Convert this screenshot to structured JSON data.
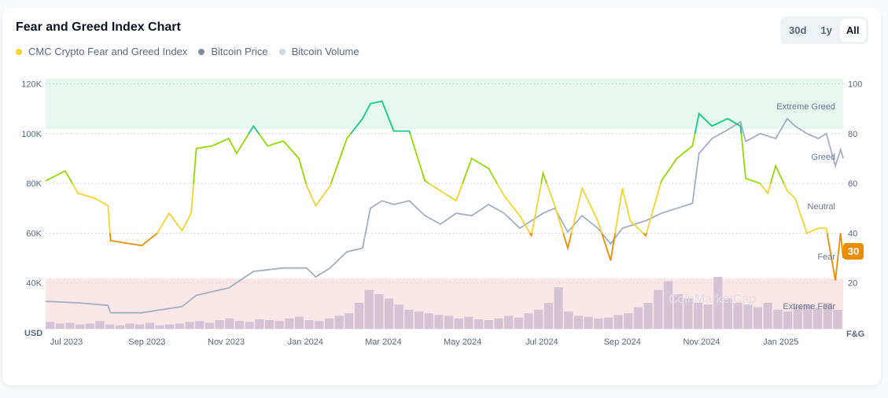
{
  "title": "Fear and Greed Index Chart",
  "legend": [
    {
      "label": "CMC Crypto Fear and Greed Index",
      "color": "#f3d42f"
    },
    {
      "label": "Bitcoin Price",
      "color": "#858ca2"
    },
    {
      "label": "Bitcoin Volume",
      "color": "#cfd6e4"
    }
  ],
  "range_buttons": [
    {
      "label": "30d",
      "active": false
    },
    {
      "label": "1y",
      "active": false
    },
    {
      "label": "All",
      "active": true
    }
  ],
  "current_value": "30",
  "watermark": "CoinMarketCap",
  "chart_data": {
    "type": "line",
    "left_axis": {
      "unit_label": "USD",
      "ticks": [
        "40K",
        "60K",
        "80K",
        "100K",
        "120K"
      ],
      "range": [
        20000,
        120000
      ]
    },
    "right_axis": {
      "unit_label": "F&G",
      "ticks": [
        "20",
        "40",
        "60",
        "80",
        "100"
      ],
      "range": [
        0,
        100
      ]
    },
    "x_ticks": [
      "Jul 2023",
      "Sep 2023",
      "Nov 2023",
      "Jan 2024",
      "Mar 2024",
      "May 2024",
      "Jul 2024",
      "Sep 2024",
      "Nov 2024",
      "Jan 2025"
    ],
    "zones": [
      {
        "label": "Extreme Greed",
        "from": 80,
        "to": 100,
        "color": "#e6f7f0"
      },
      {
        "label": "Greed",
        "from": 60,
        "to": 80
      },
      {
        "label": "Neutral",
        "from": 40,
        "to": 60
      },
      {
        "label": "Fear",
        "from": 20,
        "to": 40
      },
      {
        "label": "Extreme Fear",
        "from": 0,
        "to": 20,
        "color": "#fbe7e8"
      }
    ],
    "grid": true,
    "series": [
      {
        "name": "CMC Crypto Fear and Greed Index",
        "axis": "right",
        "points": [
          [
            "2023-06-15",
            61
          ],
          [
            "2023-06-30",
            65
          ],
          [
            "2023-07-10",
            56
          ],
          [
            "2023-07-23",
            54
          ],
          [
            "2023-08-02",
            51
          ],
          [
            "2023-08-04",
            37
          ],
          [
            "2023-08-16",
            36
          ],
          [
            "2023-08-28",
            35
          ],
          [
            "2023-09-09",
            40
          ],
          [
            "2023-09-18",
            48
          ],
          [
            "2023-09-28",
            41
          ],
          [
            "2023-10-05",
            48
          ],
          [
            "2023-10-09",
            74
          ],
          [
            "2023-10-21",
            75
          ],
          [
            "2023-11-03",
            78
          ],
          [
            "2023-11-09",
            72
          ],
          [
            "2023-11-22",
            83
          ],
          [
            "2023-12-03",
            75
          ],
          [
            "2023-12-15",
            77
          ],
          [
            "2023-12-27",
            70
          ],
          [
            "2024-01-02",
            59
          ],
          [
            "2024-01-09",
            51
          ],
          [
            "2024-01-20",
            59
          ],
          [
            "2024-02-02",
            78
          ],
          [
            "2024-02-14",
            86
          ],
          [
            "2024-02-20",
            92
          ],
          [
            "2024-02-29",
            93
          ],
          [
            "2024-03-09",
            81
          ],
          [
            "2024-03-21",
            81
          ],
          [
            "2024-04-02",
            61
          ],
          [
            "2024-04-14",
            57
          ],
          [
            "2024-04-26",
            53
          ],
          [
            "2024-05-08",
            70
          ],
          [
            "2024-05-21",
            66
          ],
          [
            "2024-06-02",
            55
          ],
          [
            "2024-06-14",
            47
          ],
          [
            "2024-06-23",
            39
          ],
          [
            "2024-07-02",
            64
          ],
          [
            "2024-07-11",
            51
          ],
          [
            "2024-07-21",
            34
          ],
          [
            "2024-08-01",
            58
          ],
          [
            "2024-08-13",
            45
          ],
          [
            "2024-08-23",
            29
          ],
          [
            "2024-09-01",
            58
          ],
          [
            "2024-09-07",
            45
          ],
          [
            "2024-09-19",
            39
          ],
          [
            "2024-10-01",
            61
          ],
          [
            "2024-10-13",
            70
          ],
          [
            "2024-10-25",
            75
          ],
          [
            "2024-10-30",
            88
          ],
          [
            "2024-11-09",
            83
          ],
          [
            "2024-11-21",
            86
          ],
          [
            "2024-12-01",
            83
          ],
          [
            "2024-12-05",
            62
          ],
          [
            "2024-12-16",
            60
          ],
          [
            "2024-12-22",
            56
          ],
          [
            "2024-12-28",
            67
          ],
          [
            "2025-01-06",
            57
          ],
          [
            "2025-01-12",
            54
          ],
          [
            "2025-01-21",
            40
          ],
          [
            "2025-01-30",
            42
          ],
          [
            "2025-02-05",
            42
          ],
          [
            "2025-02-12",
            21
          ],
          [
            "2025-02-16",
            40
          ],
          [
            "2025-02-18",
            30
          ]
        ]
      },
      {
        "name": "Bitcoin Price",
        "axis": "left",
        "points": [
          [
            "2023-06-15",
            32600
          ],
          [
            "2023-07-10",
            32000
          ],
          [
            "2023-08-02",
            31000
          ],
          [
            "2023-08-04",
            28000
          ],
          [
            "2023-08-28",
            28000
          ],
          [
            "2023-09-09",
            29000
          ],
          [
            "2023-09-28",
            30500
          ],
          [
            "2023-10-09",
            35000
          ],
          [
            "2023-11-03",
            38000
          ],
          [
            "2023-11-22",
            44600
          ],
          [
            "2023-12-15",
            46000
          ],
          [
            "2024-01-02",
            46000
          ],
          [
            "2024-01-09",
            42400
          ],
          [
            "2024-01-20",
            46000
          ],
          [
            "2024-02-02",
            52500
          ],
          [
            "2024-02-14",
            54000
          ],
          [
            "2024-02-20",
            70000
          ],
          [
            "2024-02-29",
            73000
          ],
          [
            "2024-03-09",
            71500
          ],
          [
            "2024-03-21",
            73000
          ],
          [
            "2024-04-02",
            67000
          ],
          [
            "2024-04-14",
            63600
          ],
          [
            "2024-04-26",
            68000
          ],
          [
            "2024-05-08",
            67000
          ],
          [
            "2024-05-21",
            71500
          ],
          [
            "2024-06-02",
            68000
          ],
          [
            "2024-06-14",
            62000
          ],
          [
            "2024-07-02",
            68000
          ],
          [
            "2024-07-11",
            70000
          ],
          [
            "2024-07-21",
            60400
          ],
          [
            "2024-08-01",
            67000
          ],
          [
            "2024-08-13",
            62000
          ],
          [
            "2024-08-23",
            55700
          ],
          [
            "2024-09-01",
            62000
          ],
          [
            "2024-09-19",
            65000
          ],
          [
            "2024-10-01",
            68000
          ],
          [
            "2024-10-13",
            70000
          ],
          [
            "2024-10-25",
            72000
          ],
          [
            "2024-10-30",
            92000
          ],
          [
            "2024-11-09",
            98000
          ],
          [
            "2024-11-21",
            101500
          ],
          [
            "2024-12-01",
            104700
          ],
          [
            "2024-12-05",
            96800
          ],
          [
            "2024-12-16",
            100000
          ],
          [
            "2024-12-28",
            98000
          ],
          [
            "2025-01-06",
            106000
          ],
          [
            "2025-01-12",
            103000
          ],
          [
            "2025-01-21",
            100000
          ],
          [
            "2025-01-30",
            98000
          ],
          [
            "2025-02-05",
            100000
          ],
          [
            "2025-02-12",
            87000
          ],
          [
            "2025-02-16",
            93600
          ],
          [
            "2025-02-18",
            90000
          ]
        ]
      },
      {
        "name": "Bitcoin Volume",
        "axis": "none",
        "values": [
          8,
          6,
          7,
          5,
          6,
          9,
          5,
          4,
          6,
          5,
          7,
          4,
          5,
          6,
          8,
          9,
          7,
          10,
          12,
          9,
          8,
          11,
          10,
          9,
          12,
          14,
          10,
          9,
          12,
          15,
          18,
          30,
          45,
          40,
          35,
          28,
          22,
          20,
          18,
          16,
          15,
          12,
          14,
          11,
          10,
          12,
          15,
          13,
          18,
          22,
          30,
          48,
          20,
          15,
          14,
          12,
          13,
          16,
          18,
          25,
          30,
          45,
          55,
          40,
          35,
          30,
          28,
          60,
          35,
          30,
          28,
          25,
          30,
          22,
          20,
          26,
          28,
          24,
          30,
          22
        ]
      }
    ]
  }
}
